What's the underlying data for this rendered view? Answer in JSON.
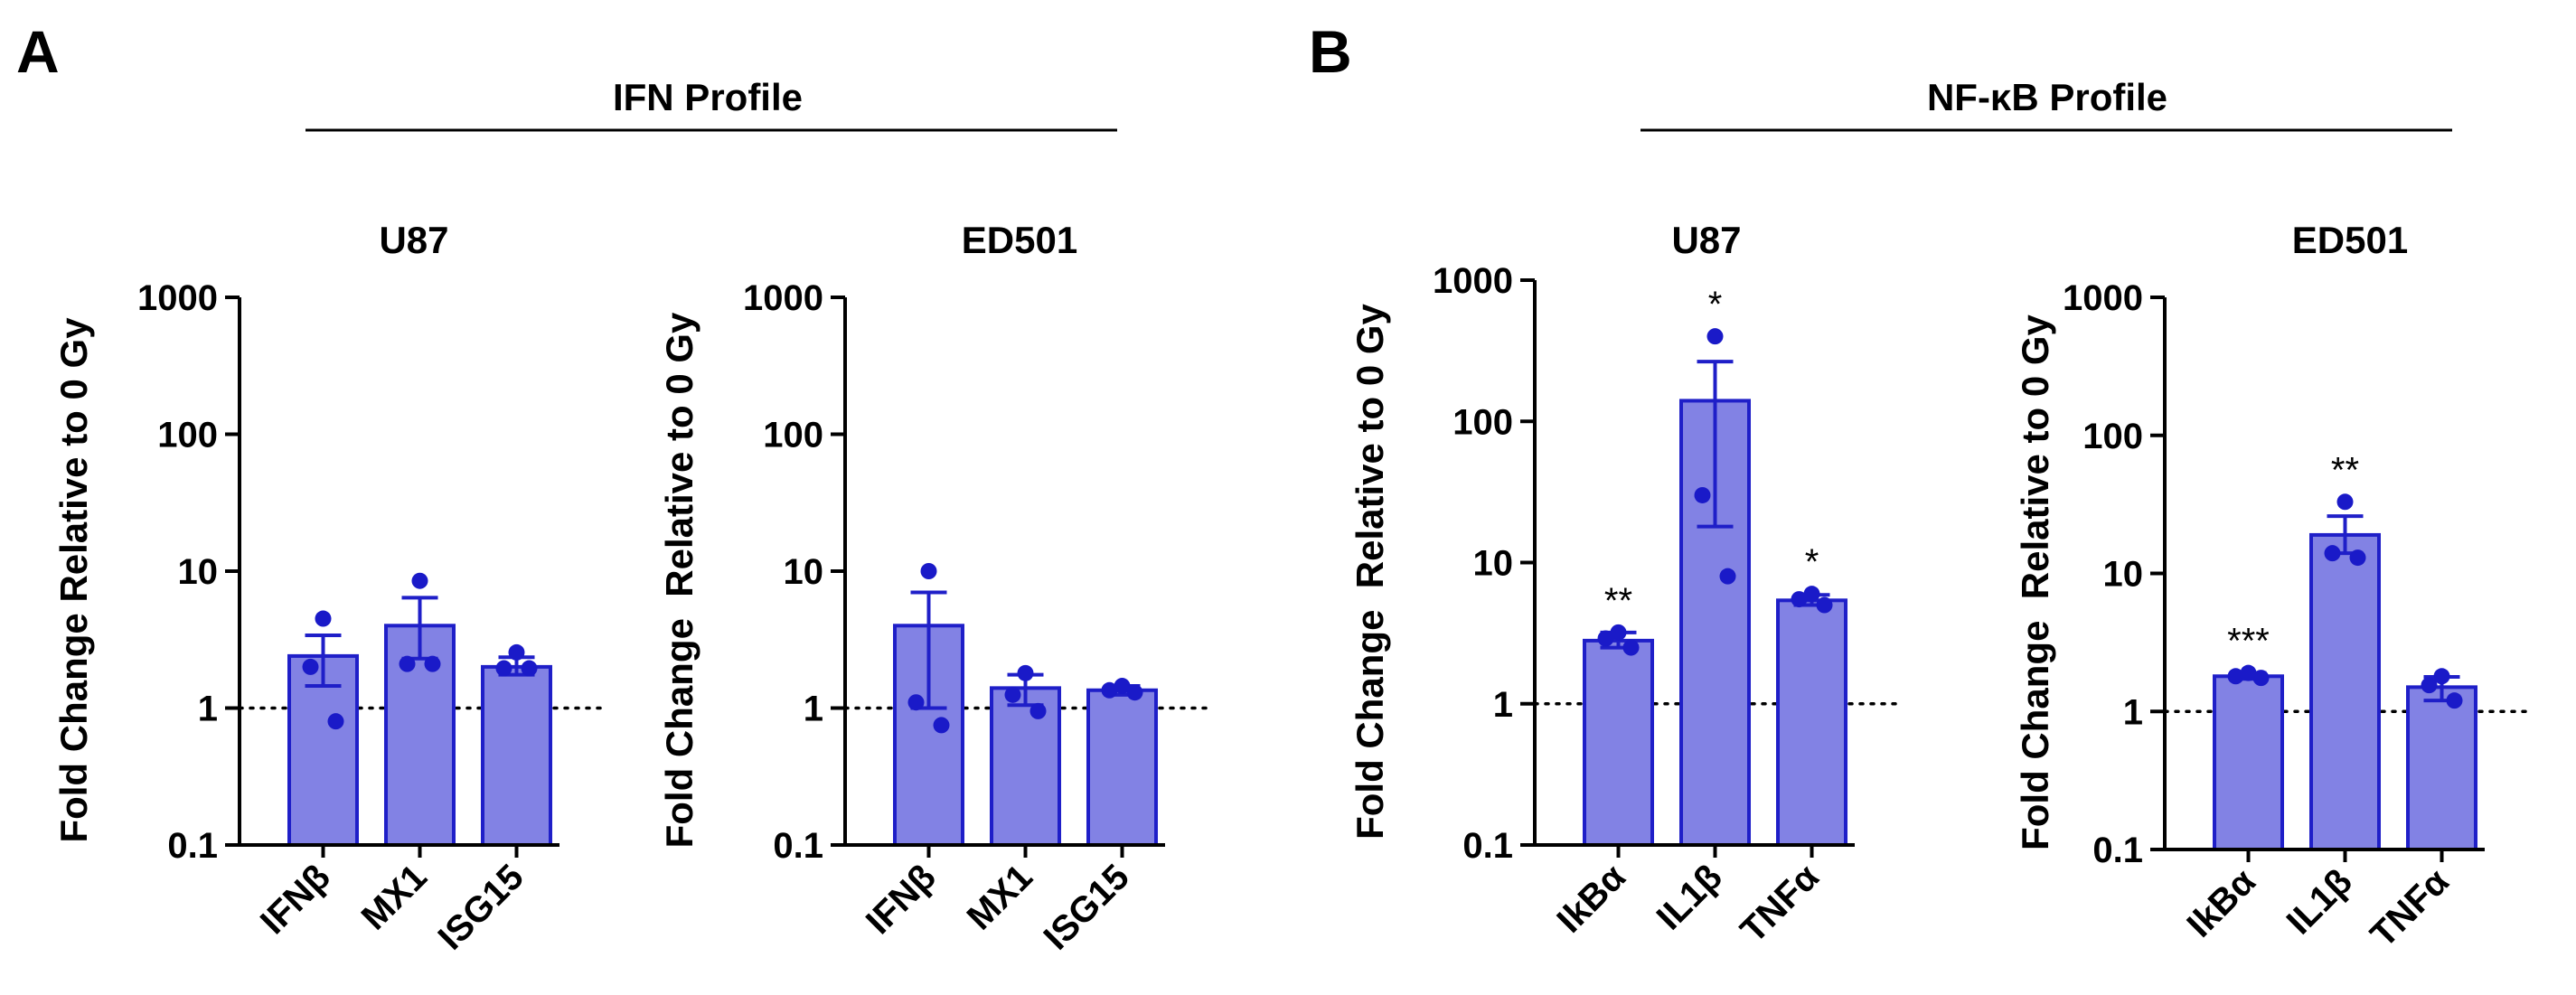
{
  "panels": {
    "a": {
      "letter": "A",
      "profile_title": "IFN Profile"
    },
    "b": {
      "letter": "B",
      "profile_title": "NF-κB Profile"
    }
  },
  "colors": {
    "bar_fill": "#8282e4",
    "bar_stroke": "#1f1fc8",
    "point": "#1a1ac8",
    "axis": "#000000"
  },
  "chart_data": [
    {
      "type": "bar",
      "title": "U87",
      "ylabel": "Fold Change Relative to 0 Gy",
      "yscale": "log",
      "ylim": [
        0.1,
        1000
      ],
      "yticks": [
        "0.1",
        "1",
        "10",
        "100",
        "1000"
      ],
      "reference_line": 1,
      "categories": [
        "IFNβ",
        "MX1",
        "ISG15"
      ],
      "values": [
        2.4,
        4.0,
        2.0
      ],
      "error_low": [
        1.45,
        2.3,
        1.75
      ],
      "error_high": [
        3.4,
        6.4,
        2.35
      ],
      "points": [
        [
          4.5,
          2.0,
          0.8
        ],
        [
          8.5,
          2.1,
          2.1
        ],
        [
          2.55,
          1.95,
          1.95
        ]
      ],
      "significance": [
        "",
        "",
        ""
      ]
    },
    {
      "type": "bar",
      "title": "ED501",
      "ylabel": "Fold Change  Relative to 0 Gy",
      "yscale": "log",
      "ylim": [
        0.1,
        1000
      ],
      "yticks": [
        "0.1",
        "1",
        "10",
        "100",
        "1000"
      ],
      "reference_line": 1,
      "categories": [
        "IFNβ",
        "MX1",
        "ISG15"
      ],
      "values": [
        4.0,
        1.4,
        1.35
      ],
      "error_low": [
        1.0,
        1.05,
        1.25
      ],
      "error_high": [
        7.0,
        1.75,
        1.45
      ],
      "points": [
        [
          10.0,
          1.1,
          0.75
        ],
        [
          1.8,
          1.25,
          0.95
        ],
        [
          1.45,
          1.35,
          1.3
        ]
      ],
      "significance": [
        "",
        "",
        ""
      ]
    },
    {
      "type": "bar",
      "title": "U87",
      "ylabel": "Fold Change  Relative to 0 Gy",
      "yscale": "log",
      "ylim": [
        0.1,
        1000
      ],
      "yticks": [
        "0.1",
        "1",
        "10",
        "100",
        "1000"
      ],
      "reference_line": 1,
      "categories": [
        "IkBα",
        "IL1β",
        "TNFα"
      ],
      "values": [
        2.8,
        140,
        5.4
      ],
      "error_low": [
        2.5,
        18,
        5.0
      ],
      "error_high": [
        3.2,
        265,
        5.9
      ],
      "points": [
        [
          3.2,
          2.9,
          2.5
        ],
        [
          400,
          30,
          8
        ],
        [
          6.0,
          5.5,
          5.0
        ]
      ],
      "significance": [
        "**",
        "*",
        "*"
      ]
    },
    {
      "type": "bar",
      "title": "ED501",
      "ylabel": "Fold Change  Relative to 0 Gy",
      "yscale": "log",
      "ylim": [
        0.1,
        1000
      ],
      "yticks": [
        "0.1",
        "1",
        "10",
        "100",
        "1000"
      ],
      "reference_line": 1,
      "categories": [
        "IkBα",
        "IL1β",
        "TNFα"
      ],
      "values": [
        1.8,
        19,
        1.5
      ],
      "error_low": [
        1.72,
        14,
        1.2
      ],
      "error_high": [
        1.9,
        26,
        1.78
      ],
      "points": [
        [
          1.9,
          1.8,
          1.75
        ],
        [
          33,
          14,
          13
        ],
        [
          1.8,
          1.55,
          1.2
        ]
      ],
      "significance": [
        "***",
        "**",
        ""
      ]
    }
  ]
}
